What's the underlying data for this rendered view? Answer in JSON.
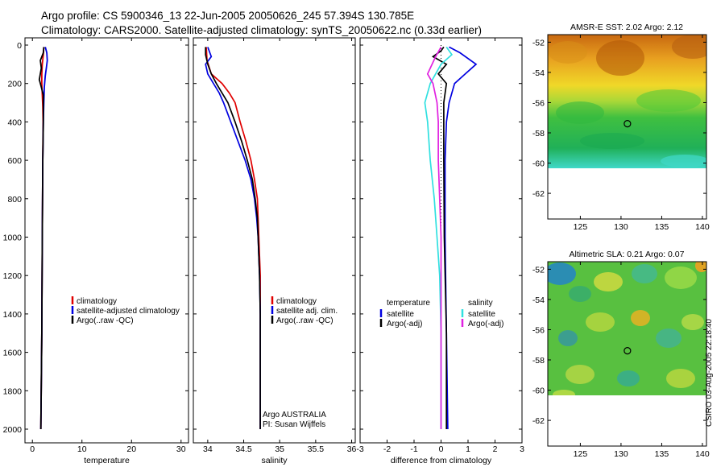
{
  "header": {
    "line1": "Argo profile: CS 5900346_13 22-Jun-2005 20050626_245 57.394S 130.785E",
    "line2": "Climatology: CARS2000. Satellite-adjusted climatology: synTS_20050622.nc (0.33d earlier)"
  },
  "stamp": "CSIRO 03-Aug-2005 22:18:40",
  "colors": {
    "red": "#e00000",
    "blue": "#0000e0",
    "black": "#000000",
    "cyan": "#30e0e0",
    "magenta": "#e020e0",
    "grey": "#999999"
  },
  "chart_data": [
    {
      "type": "line",
      "name": "temperature-panel",
      "xlabel": "temperature",
      "ylabel": "",
      "xlim": [
        -1.5,
        31.5
      ],
      "ylim": [
        2050,
        0
      ],
      "xticks": [
        0,
        10,
        20,
        30
      ],
      "xtick_labels": [
        "0",
        "10",
        "20",
        "30"
      ],
      "yticks": [
        0,
        200,
        400,
        600,
        800,
        1000,
        1200,
        1400,
        1600,
        1800,
        2000
      ],
      "ytick_labels": [
        "0",
        "200",
        "400",
        "600",
        "800",
        "1000",
        "1200",
        "1400",
        "1600",
        "1800",
        "2000"
      ],
      "series": [
        {
          "name": "climatology",
          "color": "red",
          "points": [
            [
              2.3,
              10
            ],
            [
              2.2,
              50
            ],
            [
              2.0,
              100
            ],
            [
              1.9,
              150
            ],
            [
              1.9,
              200
            ],
            [
              2.0,
              260
            ],
            [
              2.1,
              320
            ],
            [
              2.15,
              400
            ],
            [
              2.1,
              600
            ],
            [
              2.0,
              1000
            ],
            [
              1.9,
              1500
            ],
            [
              1.7,
              2000
            ]
          ]
        },
        {
          "name": "satellite-adjusted climatology",
          "color": "blue",
          "points": [
            [
              2.6,
              10
            ],
            [
              2.9,
              40
            ],
            [
              3.0,
              80
            ],
            [
              2.8,
              120
            ],
            [
              2.6,
              160
            ],
            [
              2.4,
              220
            ],
            [
              2.3,
              300
            ],
            [
              2.2,
              400
            ],
            [
              2.1,
              600
            ],
            [
              2.0,
              1000
            ],
            [
              1.9,
              1500
            ],
            [
              1.7,
              2000
            ]
          ]
        },
        {
          "name": "Argo(..raw -QC)",
          "color": "black",
          "points": [
            [
              2.3,
              10
            ],
            [
              2.2,
              40
            ],
            [
              1.6,
              80
            ],
            [
              1.8,
              120
            ],
            [
              1.4,
              180
            ],
            [
              1.6,
              200
            ],
            [
              2.2,
              260
            ],
            [
              2.2,
              400
            ],
            [
              2.1,
              600
            ],
            [
              2.0,
              1000
            ],
            [
              1.9,
              1500
            ],
            [
              1.7,
              2000
            ]
          ]
        }
      ],
      "legend": {
        "position": "middle-right",
        "entries": [
          "climatology",
          "satellite-adjusted climatology",
          "Argo(..raw -QC)"
        ]
      }
    },
    {
      "type": "line",
      "name": "salinity-panel",
      "xlabel": "salinity",
      "ylabel": "",
      "xlim": [
        33.8,
        36.05
      ],
      "ylim": [
        2050,
        0
      ],
      "xticks": [
        34,
        34.5,
        35,
        35.5,
        36
      ],
      "xtick_labels": [
        "34",
        "34.5",
        "35",
        "35.5",
        "36"
      ],
      "series": [
        {
          "name": "climatology",
          "color": "red",
          "points": [
            [
              33.98,
              10
            ],
            [
              33.99,
              80
            ],
            [
              34.05,
              150
            ],
            [
              34.2,
              200
            ],
            [
              34.3,
              250
            ],
            [
              34.38,
              300
            ],
            [
              34.45,
              400
            ],
            [
              34.53,
              500
            ],
            [
              34.6,
              600
            ],
            [
              34.65,
              700
            ],
            [
              34.69,
              800
            ],
            [
              34.7,
              900
            ],
            [
              34.71,
              1000
            ],
            [
              34.72,
              1100
            ],
            [
              34.73,
              1200
            ],
            [
              34.73,
              1400
            ],
            [
              34.73,
              2000
            ]
          ]
        },
        {
          "name": "satellite adj. clim.",
          "color": "blue",
          "points": [
            [
              34.0,
              10
            ],
            [
              34.05,
              60
            ],
            [
              33.97,
              100
            ],
            [
              34.0,
              150
            ],
            [
              34.08,
              200
            ],
            [
              34.16,
              250
            ],
            [
              34.22,
              300
            ],
            [
              34.32,
              400
            ],
            [
              34.42,
              500
            ],
            [
              34.52,
              600
            ],
            [
              34.6,
              700
            ],
            [
              34.65,
              800
            ],
            [
              34.68,
              900
            ],
            [
              34.7,
              1000
            ],
            [
              34.71,
              1100
            ],
            [
              34.72,
              1200
            ],
            [
              34.73,
              1400
            ],
            [
              34.73,
              2000
            ]
          ]
        },
        {
          "name": "Argo(..raw -QC)",
          "color": "black",
          "points": [
            [
              33.97,
              10
            ],
            [
              33.97,
              50
            ],
            [
              34.0,
              100
            ],
            [
              34.05,
              150
            ],
            [
              34.12,
              200
            ],
            [
              34.2,
              250
            ],
            [
              34.28,
              300
            ],
            [
              34.38,
              400
            ],
            [
              34.47,
              500
            ],
            [
              34.55,
              600
            ],
            [
              34.62,
              700
            ],
            [
              34.66,
              800
            ],
            [
              34.69,
              900
            ],
            [
              34.7,
              1000
            ],
            [
              34.71,
              1100
            ],
            [
              34.72,
              1200
            ],
            [
              34.73,
              1400
            ],
            [
              34.73,
              2000
            ]
          ]
        }
      ],
      "legend": {
        "position": "middle-right",
        "entries": [
          "climatology",
          "satellite adj. clim.",
          "Argo(..raw -QC)"
        ]
      },
      "annotation": {
        "line1": "Argo AUSTRALIA",
        "line2": "PI: Susan Wijffels"
      }
    },
    {
      "type": "line",
      "name": "difference-panel",
      "xlabel": "difference from climatology",
      "ylabel": "",
      "xlim": [
        -3,
        3
      ],
      "ylim": [
        2050,
        0
      ],
      "xticks": [
        -3,
        -2,
        -1,
        0,
        1,
        2,
        3
      ],
      "xtick_labels": [
        "-3",
        "-2",
        "-1",
        "0",
        "1",
        "2",
        "3"
      ],
      "series": [
        {
          "name": "temperature satellite",
          "color": "blue",
          "points": [
            [
              0.3,
              10
            ],
            [
              0.7,
              40
            ],
            [
              1.3,
              100
            ],
            [
              0.9,
              150
            ],
            [
              0.5,
              200
            ],
            [
              0.3,
              300
            ],
            [
              0.2,
              400
            ],
            [
              0.15,
              600
            ],
            [
              0.15,
              1000
            ],
            [
              0.2,
              1500
            ],
            [
              0.25,
              2000
            ]
          ]
        },
        {
          "name": "temperature Argo(-adj)",
          "color": "black",
          "points": [
            [
              0.1,
              10
            ],
            [
              0.0,
              30
            ],
            [
              -0.3,
              60
            ],
            [
              0.2,
              100
            ],
            [
              -0.1,
              150
            ],
            [
              0.2,
              200
            ],
            [
              0.1,
              300
            ],
            [
              0.1,
              400
            ],
            [
              0.1,
              600
            ],
            [
              0.12,
              1000
            ],
            [
              0.2,
              1500
            ],
            [
              0.2,
              2000
            ]
          ]
        },
        {
          "name": "salinity satellite",
          "color": "cyan",
          "points": [
            [
              0.2,
              10
            ],
            [
              0.4,
              50
            ],
            [
              0.0,
              100
            ],
            [
              -0.4,
              200
            ],
            [
              -0.6,
              300
            ],
            [
              -0.5,
              400
            ],
            [
              -0.4,
              600
            ],
            [
              -0.25,
              800
            ],
            [
              -0.15,
              1000
            ],
            [
              -0.05,
              1200
            ],
            [
              0.0,
              1500
            ],
            [
              0.0,
              2000
            ]
          ]
        },
        {
          "name": "salinity Argo(-adj)",
          "color": "magenta",
          "points": [
            [
              0.0,
              10
            ],
            [
              -0.2,
              60
            ],
            [
              -0.5,
              150
            ],
            [
              -0.3,
              200
            ],
            [
              -0.15,
              300
            ],
            [
              -0.1,
              400
            ],
            [
              -0.1,
              600
            ],
            [
              -0.05,
              800
            ],
            [
              0.0,
              1000
            ],
            [
              0.0,
              1500
            ],
            [
              0.0,
              2000
            ]
          ]
        }
      ],
      "legend": {
        "position": "middle",
        "temperature_heading": "temperature",
        "temperature_entries": [
          "satellite",
          "Argo(-adj)"
        ],
        "salinity_heading": "salinity",
        "salinity_entries": [
          "satellite",
          "Argo(-adj)"
        ]
      }
    },
    {
      "type": "heatmap",
      "name": "sst-map",
      "title": "AMSR-E SST: 2.02 Argo: 2.12",
      "xlim": [
        121,
        140.5
      ],
      "ylim": [
        -63.7,
        -51.5
      ],
      "xticks": [
        125,
        130,
        135,
        140
      ],
      "xtick_labels": [
        "125",
        "130",
        "135",
        "140"
      ],
      "yticks": [
        -52,
        -54,
        -56,
        -58,
        -60,
        -62
      ],
      "ytick_labels": [
        "-52",
        "-54",
        "-56",
        "-58",
        "-60",
        "-62"
      ],
      "data_extent_lat": [
        -60,
        -51.5
      ],
      "marker": {
        "lon": 130.785,
        "lat": -57.394
      }
    },
    {
      "type": "heatmap",
      "name": "sla-map",
      "title": "Altimetric SLA: 0.21 Argo: 0.07",
      "xlim": [
        121,
        140.5
      ],
      "ylim": [
        -63.7,
        -51.5
      ],
      "xticks": [
        125,
        130,
        135,
        140
      ],
      "xtick_labels": [
        "125",
        "130",
        "135",
        "140"
      ],
      "yticks": [
        -52,
        -54,
        -56,
        -58,
        -60,
        -62
      ],
      "ytick_labels": [
        "-52",
        "-54",
        "-56",
        "-58",
        "-60",
        "-62"
      ],
      "data_extent_lat": [
        -60,
        -51.5
      ],
      "marker": {
        "lon": 130.785,
        "lat": -57.394
      }
    }
  ]
}
